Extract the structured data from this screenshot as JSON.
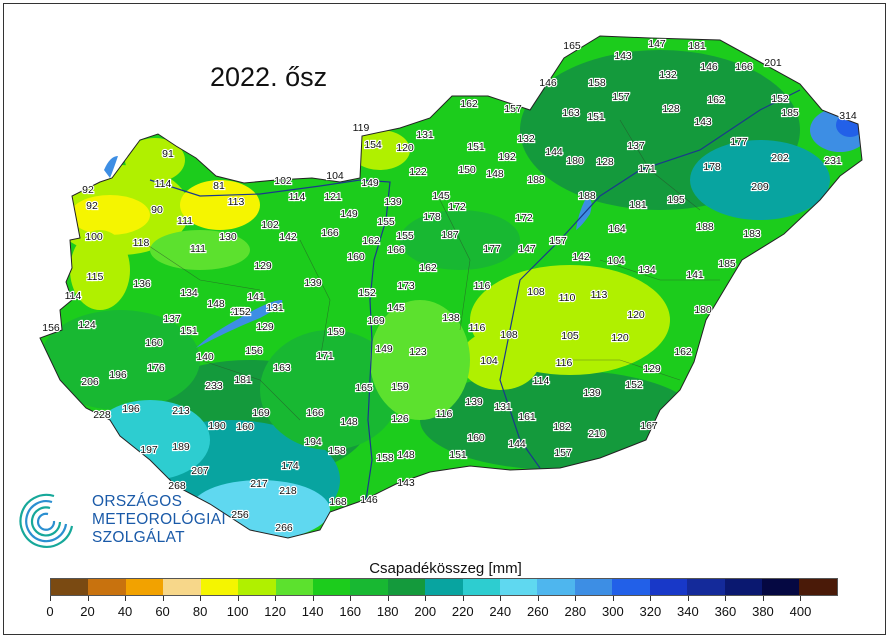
{
  "title": "2022. ősz",
  "logo": {
    "line1": "ORSZÁGOS",
    "line2": "METEOROLÓGIAI",
    "line3": "SZOLGÁLAT"
  },
  "legend": {
    "title": "Csapadékösszeg [mm]",
    "ticks": [
      "0",
      "20",
      "40",
      "60",
      "80",
      "100",
      "120",
      "140",
      "160",
      "180",
      "200",
      "220",
      "240",
      "260",
      "280",
      "300",
      "320",
      "340",
      "360",
      "380",
      "400"
    ],
    "colors": [
      "#7a4a12",
      "#c8720e",
      "#f2a200",
      "#f7d78a",
      "#f5f500",
      "#b0f000",
      "#5ce12e",
      "#1ccc1c",
      "#18b832",
      "#149a3c",
      "#08a4a0",
      "#2dcdd0",
      "#5fd8f0",
      "#4eb6ee",
      "#3d8ee4",
      "#2260e8",
      "#1838c8",
      "#142a9a",
      "#0a1870",
      "#050842",
      "#4a1a08"
    ]
  },
  "stations": [
    "165",
    "143",
    "147",
    "181",
    "201",
    "146",
    "166",
    "146",
    "158",
    "157",
    "132",
    "162",
    "152",
    "162",
    "157",
    "163",
    "151",
    "128",
    "143",
    "185",
    "314",
    "119",
    "154",
    "131",
    "120",
    "132",
    "144",
    "180",
    "128",
    "137",
    "177",
    "202",
    "231",
    "151",
    "192",
    "171",
    "178",
    "209",
    "122",
    "150",
    "148",
    "188",
    "188",
    "91",
    "92",
    "114",
    "81",
    "102",
    "104",
    "149",
    "139",
    "145",
    "172",
    "181",
    "195",
    "92",
    "90",
    "113",
    "114",
    "121",
    "149",
    "178",
    "172",
    "164",
    "188",
    "183",
    "111",
    "102",
    "142",
    "166",
    "155",
    "155",
    "187",
    "157",
    "100",
    "118",
    "130",
    "111",
    "160",
    "162",
    "166",
    "177",
    "147",
    "142",
    "104",
    "134",
    "185",
    "129",
    "162",
    "139",
    "173",
    "116",
    "108",
    "110",
    "113",
    "141",
    "115",
    "136",
    "134",
    "141",
    "131",
    "152",
    "152",
    "145",
    "138",
    "120",
    "180",
    "114",
    "148",
    "152",
    "137",
    "169",
    "116",
    "108",
    "105",
    "120",
    "156",
    "124",
    "151",
    "129",
    "159",
    "149",
    "123",
    "162",
    "160",
    "140",
    "156",
    "171",
    "104",
    "116",
    "129",
    "176",
    "206",
    "196",
    "233",
    "181",
    "163",
    "165",
    "159",
    "114",
    "152",
    "228",
    "196",
    "213",
    "169",
    "166",
    "139",
    "131",
    "139",
    "190",
    "160",
    "148",
    "126",
    "116",
    "161",
    "182",
    "210",
    "167",
    "197",
    "189",
    "194",
    "158",
    "160",
    "144",
    "157",
    "207",
    "174",
    "158",
    "148",
    "151",
    "268",
    "217",
    "218",
    "143",
    "168",
    "146",
    "256",
    "266"
  ]
}
